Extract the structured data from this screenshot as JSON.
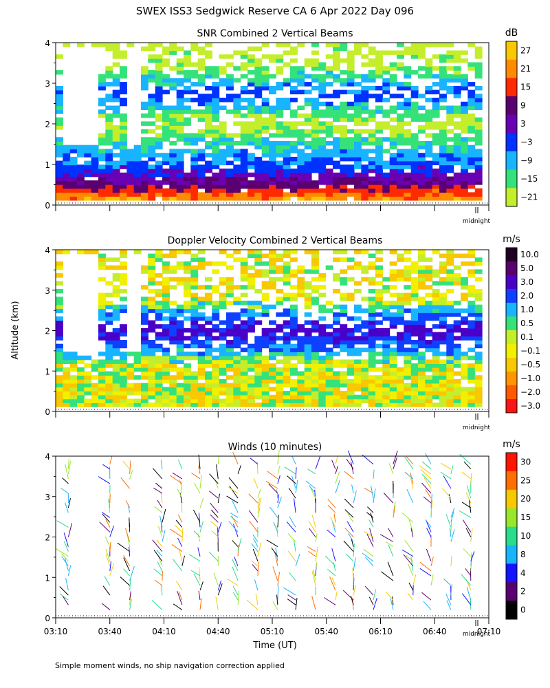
{
  "figure": {
    "title": "SWEX ISS3 Sedgwick Reserve CA    6 Apr 2022 Day 096",
    "ylabel": "Altitude (km)",
    "xlabel": "Time (UT)",
    "footnote": "Simple moment winds, no ship navigation correction applied",
    "midnight_label": "midnight"
  },
  "chart_data": [
    {
      "type": "heatmap",
      "title": "SNR Combined 2 Vertical Beams",
      "units": "dB",
      "ylim": [
        0,
        4
      ],
      "yticks": [
        "0",
        "1",
        "2",
        "3",
        "4"
      ],
      "colorbar": {
        "labels": [
          "27",
          "21",
          "15",
          "9",
          "3",
          "−3",
          "−9",
          "−15",
          "−21"
        ],
        "colors": [
          "#f8c800",
          "#ff8c00",
          "#ff2a00",
          "#5a0070",
          "#6a00b4",
          "#0032ff",
          "#19b4ff",
          "#35e27a",
          "#c4ee2c"
        ]
      },
      "profile": [
        {
          "alt_km": 0.2,
          "value": 21
        },
        {
          "alt_km": 0.5,
          "value": 9
        },
        {
          "alt_km": 0.9,
          "value": -3
        },
        {
          "alt_km": 1.3,
          "value": -9
        },
        {
          "alt_km": 2.0,
          "value": -21
        },
        {
          "alt_km": 2.75,
          "value": -3
        },
        {
          "alt_km": 3.5,
          "value": -21
        }
      ]
    },
    {
      "type": "heatmap",
      "title": "Doppler Velocity Combined 2 Vertical Beams",
      "units": "m/s",
      "ylim": [
        0,
        4
      ],
      "yticks": [
        "0",
        "1",
        "2",
        "3",
        "4"
      ],
      "colorbar": {
        "labels": [
          "10.0",
          "5.0",
          "3.0",
          "2.0",
          "1.0",
          "0.5",
          "0.1",
          "−0.1",
          "−0.5",
          "−1.0",
          "−2.0",
          "−3.0"
        ],
        "colors": [
          "#200020",
          "#5a0070",
          "#4b00c8",
          "#1040ff",
          "#19b4ff",
          "#35e27a",
          "#c4ee2c",
          "#f0f000",
          "#f8c800",
          "#ff9600",
          "#ff5a00",
          "#ff1414"
        ]
      },
      "profile": [
        {
          "alt_km": 0.3,
          "value": -0.1
        },
        {
          "alt_km": 1.2,
          "value": 0.1
        },
        {
          "alt_km": 2.0,
          "value": 3.0
        },
        {
          "alt_km": 2.8,
          "value": -0.1
        }
      ]
    },
    {
      "type": "scatter",
      "title": "Winds (10 minutes)",
      "units": "m/s",
      "ylim": [
        0,
        4
      ],
      "yticks": [
        "0",
        "1",
        "2",
        "3",
        "4"
      ],
      "x_ticks": [
        "03:10",
        "03:40",
        "04:10",
        "04:40",
        "05:10",
        "05:40",
        "06:10",
        "06:40",
        "07:10"
      ],
      "colorbar": {
        "labels": [
          "30",
          "25",
          "20",
          "15",
          "10",
          "8",
          "4",
          "2",
          "0"
        ],
        "colors": [
          "#ff1400",
          "#ff6e00",
          "#f8c800",
          "#9ae62c",
          "#28dc8c",
          "#19b4ff",
          "#1414ff",
          "#5a0070",
          "#000000"
        ]
      },
      "profiles_utc": [
        "03:17",
        "03:40",
        "03:51",
        "04:09",
        "04:20",
        "04:30",
        "04:40",
        "04:51",
        "05:02",
        "05:13",
        "05:23",
        "05:34",
        "05:45",
        "05:55",
        "06:06",
        "06:17",
        "06:28",
        "06:38",
        "06:49",
        "07:00"
      ]
    }
  ]
}
